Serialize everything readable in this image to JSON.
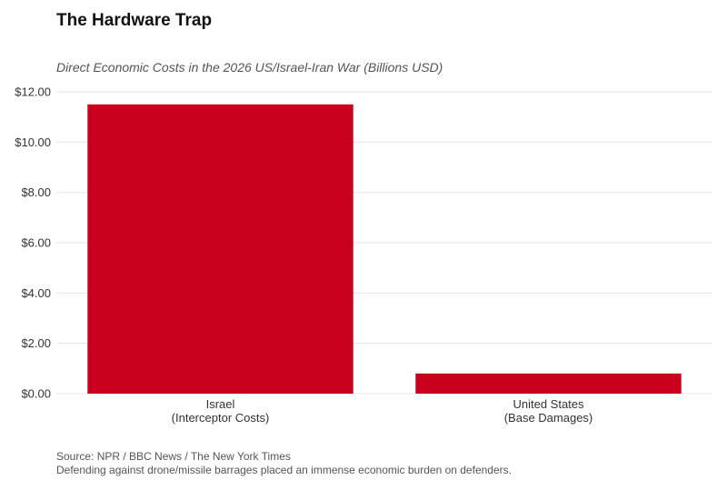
{
  "chart_data": {
    "type": "bar",
    "title": "The Hardware Trap",
    "subtitle": "Direct Economic Costs in the 2026 US/Israel-Iran War (Billions USD)",
    "categories": [
      [
        "Israel",
        "(Interceptor Costs)"
      ],
      [
        "United States",
        "(Base Damages)"
      ]
    ],
    "values": [
      11.5,
      0.8
    ],
    "ylim": [
      0,
      12
    ],
    "yticks": [
      0,
      2,
      4,
      6,
      8,
      10,
      12
    ],
    "ytick_labels": [
      "$0.00",
      "$2.00",
      "$4.00",
      "$6.00",
      "$8.00",
      "$10.00",
      "$12.00"
    ],
    "xlabel": "",
    "ylabel": "",
    "grid": true,
    "bar_color": "#c8001e",
    "grid_color": "#e6e6e6"
  },
  "caption": {
    "source": "Source: NPR / BBC News / The New York Times",
    "note": "Defending against drone/missile barrages placed an immense economic burden on defenders."
  }
}
